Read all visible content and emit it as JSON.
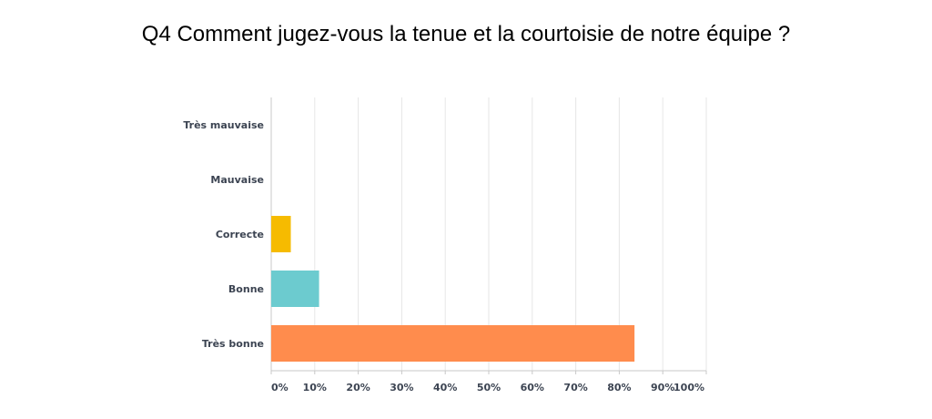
{
  "chart_data": {
    "type": "bar",
    "orientation": "horizontal",
    "title": "Q4 Comment jugez-vous la tenue et la courtoisie de notre équipe ?",
    "categories": [
      "Très mauvaise",
      "Mauvaise",
      "Correcte",
      "Bonne",
      "Très bonne"
    ],
    "values": [
      0,
      0,
      4.5,
      11,
      83.5
    ],
    "colors": [
      "#2b5fad",
      "#8dc63f",
      "#f6bb00",
      "#6ccbcf",
      "#ff8c4d"
    ],
    "xlim": [
      0,
      100
    ],
    "xticks": [
      0,
      10,
      20,
      30,
      40,
      50,
      60,
      70,
      80,
      90,
      100
    ],
    "tick_labels": [
      "0%",
      "10%",
      "20%",
      "30%",
      "40%",
      "50%",
      "60%",
      "70%",
      "80%",
      "90%",
      "100%"
    ],
    "xlabel": "",
    "ylabel": "",
    "grid": true,
    "legend": "none"
  }
}
